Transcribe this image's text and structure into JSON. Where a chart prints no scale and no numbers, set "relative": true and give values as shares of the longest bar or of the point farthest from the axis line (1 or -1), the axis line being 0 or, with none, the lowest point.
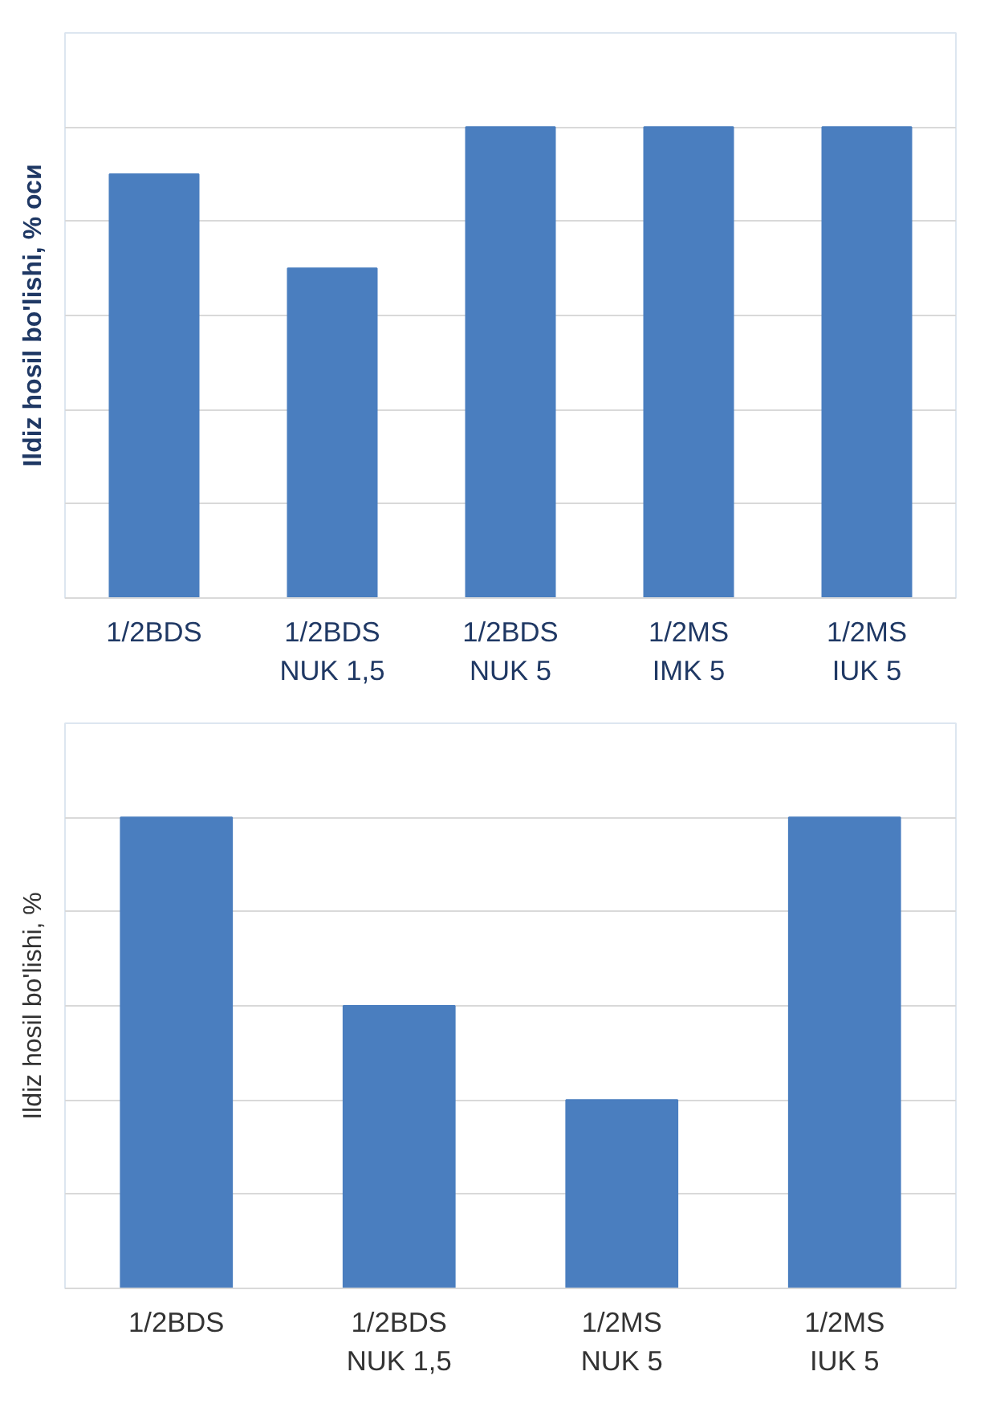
{
  "chart_data": [
    {
      "type": "bar",
      "ylabel": "Ildiz hosil bo'lishi, % оси",
      "categories": [
        "1/2BDS",
        "1/2BDS\nNUK 1,5",
        "1/2BDS\nNUK 5",
        "1/2MS\nIMK 5",
        "1/2MS\nIUK 5"
      ],
      "values": [
        0.9,
        0.7,
        1,
        1,
        1
      ],
      "color": "#4a7ebf",
      "relative": true,
      "grid": "y"
    },
    {
      "type": "bar",
      "ylabel": "Ildiz hosil bo'lishi, %",
      "categories": [
        "1/2BDS",
        "1/2BDS\nNUK 1,5",
        "1/2MS\nNUK 5",
        "1/2MS\nIUK 5"
      ],
      "values": [
        1,
        0.6,
        0.4,
        1
      ],
      "color": "#4a7ebf",
      "relative": true,
      "grid": "y"
    }
  ]
}
